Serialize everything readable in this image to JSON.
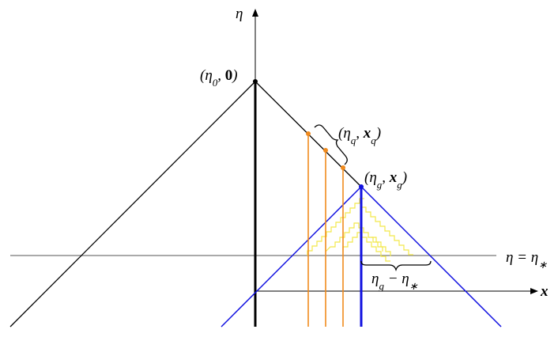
{
  "labels": {
    "eta_axis": [
      {
        "t": "η"
      }
    ],
    "point_0": [
      {
        "t": "(η"
      },
      {
        "sub": "0"
      },
      {
        "t": ", "
      },
      {
        "b": "0"
      },
      {
        "t": ")"
      }
    ],
    "point_q": [
      {
        "t": "(η"
      },
      {
        "sub": "q"
      },
      {
        "t": ", "
      },
      {
        "bi": "x"
      },
      {
        "sub": "q"
      },
      {
        "t": ")"
      }
    ],
    "point_g": [
      {
        "t": "(η"
      },
      {
        "sub": "g"
      },
      {
        "t": ", "
      },
      {
        "bi": "x"
      },
      {
        "sub": "g"
      },
      {
        "t": ")"
      }
    ],
    "eta_star": [
      {
        "t": "η = η"
      },
      {
        "sub": "∗"
      }
    ],
    "distance": [
      {
        "t": "η"
      },
      {
        "sub": "g"
      },
      {
        "t": " − η"
      },
      {
        "sub": "∗"
      }
    ],
    "x_axis": [
      {
        "bi": "x"
      }
    ]
  }
}
